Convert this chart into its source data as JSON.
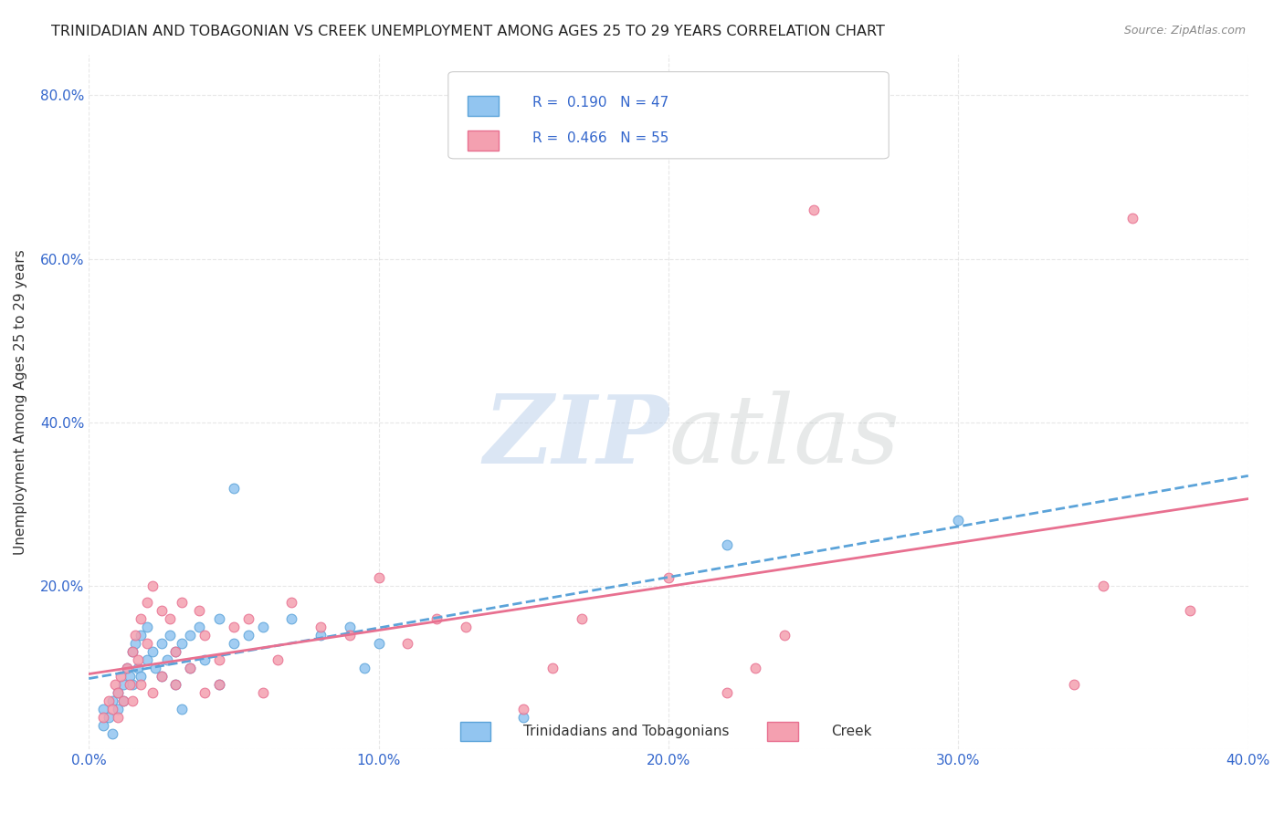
{
  "title": "TRINIDADIAN AND TOBAGONIAN VS CREEK UNEMPLOYMENT AMONG AGES 25 TO 29 YEARS CORRELATION CHART",
  "source": "Source: ZipAtlas.com",
  "xlabel": "",
  "ylabel": "Unemployment Among Ages 25 to 29 years",
  "xlim": [
    0.0,
    0.4
  ],
  "ylim": [
    0.0,
    0.85
  ],
  "xticks": [
    0.0,
    0.1,
    0.2,
    0.3,
    0.4
  ],
  "xticklabels": [
    "0.0%",
    "10.0%",
    "20.0%",
    "30.0%",
    "40.0%"
  ],
  "yticks": [
    0.0,
    0.2,
    0.4,
    0.6,
    0.8
  ],
  "yticklabels": [
    "",
    "20.0%",
    "40.0%",
    "60.0%",
    "80.0%"
  ],
  "legend_labels": [
    "Trinidadians and Tobagonians",
    "Creek"
  ],
  "R_blue": 0.19,
  "N_blue": 47,
  "R_pink": 0.466,
  "N_pink": 55,
  "blue_color": "#92C5F0",
  "pink_color": "#F4A0B0",
  "blue_line_color": "#5BA3D9",
  "pink_line_color": "#E87090",
  "blue_scatter": [
    [
      0.005,
      0.05
    ],
    [
      0.005,
      0.03
    ],
    [
      0.007,
      0.04
    ],
    [
      0.008,
      0.06
    ],
    [
      0.008,
      0.02
    ],
    [
      0.01,
      0.07
    ],
    [
      0.01,
      0.05
    ],
    [
      0.012,
      0.08
    ],
    [
      0.012,
      0.06
    ],
    [
      0.013,
      0.1
    ],
    [
      0.014,
      0.09
    ],
    [
      0.015,
      0.12
    ],
    [
      0.015,
      0.08
    ],
    [
      0.016,
      0.13
    ],
    [
      0.017,
      0.1
    ],
    [
      0.018,
      0.14
    ],
    [
      0.018,
      0.09
    ],
    [
      0.02,
      0.11
    ],
    [
      0.02,
      0.15
    ],
    [
      0.022,
      0.12
    ],
    [
      0.023,
      0.1
    ],
    [
      0.025,
      0.13
    ],
    [
      0.025,
      0.09
    ],
    [
      0.027,
      0.11
    ],
    [
      0.028,
      0.14
    ],
    [
      0.03,
      0.12
    ],
    [
      0.03,
      0.08
    ],
    [
      0.032,
      0.13
    ],
    [
      0.032,
      0.05
    ],
    [
      0.035,
      0.14
    ],
    [
      0.035,
      0.1
    ],
    [
      0.038,
      0.15
    ],
    [
      0.04,
      0.11
    ],
    [
      0.045,
      0.16
    ],
    [
      0.045,
      0.08
    ],
    [
      0.05,
      0.13
    ],
    [
      0.05,
      0.32
    ],
    [
      0.055,
      0.14
    ],
    [
      0.06,
      0.15
    ],
    [
      0.07,
      0.16
    ],
    [
      0.08,
      0.14
    ],
    [
      0.09,
      0.15
    ],
    [
      0.095,
      0.1
    ],
    [
      0.1,
      0.13
    ],
    [
      0.15,
      0.04
    ],
    [
      0.22,
      0.25
    ],
    [
      0.3,
      0.28
    ]
  ],
  "pink_scatter": [
    [
      0.005,
      0.04
    ],
    [
      0.007,
      0.06
    ],
    [
      0.008,
      0.05
    ],
    [
      0.009,
      0.08
    ],
    [
      0.01,
      0.07
    ],
    [
      0.01,
      0.04
    ],
    [
      0.011,
      0.09
    ],
    [
      0.012,
      0.06
    ],
    [
      0.013,
      0.1
    ],
    [
      0.014,
      0.08
    ],
    [
      0.015,
      0.12
    ],
    [
      0.015,
      0.06
    ],
    [
      0.016,
      0.14
    ],
    [
      0.017,
      0.11
    ],
    [
      0.018,
      0.16
    ],
    [
      0.018,
      0.08
    ],
    [
      0.02,
      0.18
    ],
    [
      0.02,
      0.13
    ],
    [
      0.022,
      0.07
    ],
    [
      0.022,
      0.2
    ],
    [
      0.025,
      0.17
    ],
    [
      0.025,
      0.09
    ],
    [
      0.028,
      0.16
    ],
    [
      0.03,
      0.08
    ],
    [
      0.03,
      0.12
    ],
    [
      0.032,
      0.18
    ],
    [
      0.035,
      0.1
    ],
    [
      0.038,
      0.17
    ],
    [
      0.04,
      0.14
    ],
    [
      0.04,
      0.07
    ],
    [
      0.045,
      0.11
    ],
    [
      0.045,
      0.08
    ],
    [
      0.05,
      0.15
    ],
    [
      0.055,
      0.16
    ],
    [
      0.06,
      0.07
    ],
    [
      0.065,
      0.11
    ],
    [
      0.07,
      0.18
    ],
    [
      0.08,
      0.15
    ],
    [
      0.09,
      0.14
    ],
    [
      0.1,
      0.21
    ],
    [
      0.11,
      0.13
    ],
    [
      0.12,
      0.16
    ],
    [
      0.13,
      0.15
    ],
    [
      0.15,
      0.05
    ],
    [
      0.16,
      0.1
    ],
    [
      0.17,
      0.16
    ],
    [
      0.2,
      0.21
    ],
    [
      0.22,
      0.07
    ],
    [
      0.23,
      0.1
    ],
    [
      0.24,
      0.14
    ],
    [
      0.25,
      0.66
    ],
    [
      0.34,
      0.08
    ],
    [
      0.35,
      0.2
    ],
    [
      0.36,
      0.65
    ],
    [
      0.38,
      0.17
    ]
  ],
  "background_color": "#ffffff",
  "grid_color": "#dddddd"
}
